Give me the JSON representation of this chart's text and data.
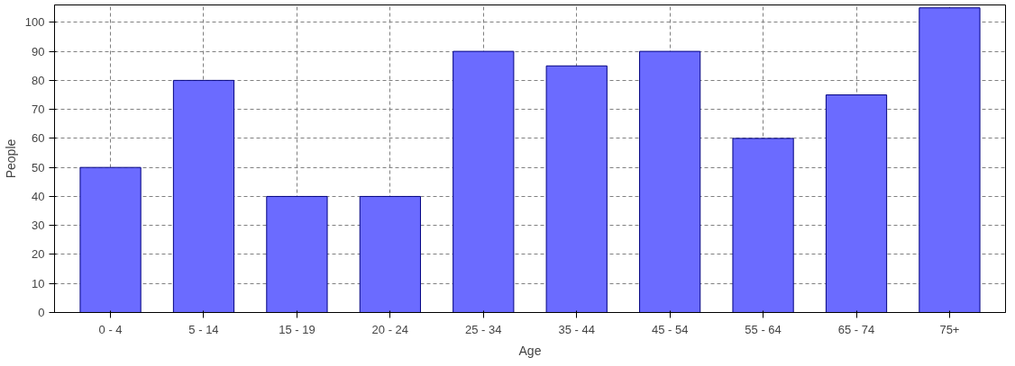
{
  "chart_data": {
    "type": "bar",
    "xlabel": "Age",
    "ylabel": "People",
    "categories": [
      "0 - 4",
      "5 - 14",
      "15 - 19",
      "20 - 24",
      "25 - 34",
      "35 - 44",
      "45 - 54",
      "55 - 64",
      "65 - 74",
      "75+"
    ],
    "values": [
      50,
      80,
      40,
      40,
      90,
      85,
      90,
      60,
      75,
      105
    ],
    "color": "#6b6bff",
    "ylim": [
      0,
      106
    ],
    "yticks": [
      0,
      10,
      20,
      30,
      40,
      50,
      60,
      70,
      80,
      90,
      100
    ],
    "grid": true
  }
}
